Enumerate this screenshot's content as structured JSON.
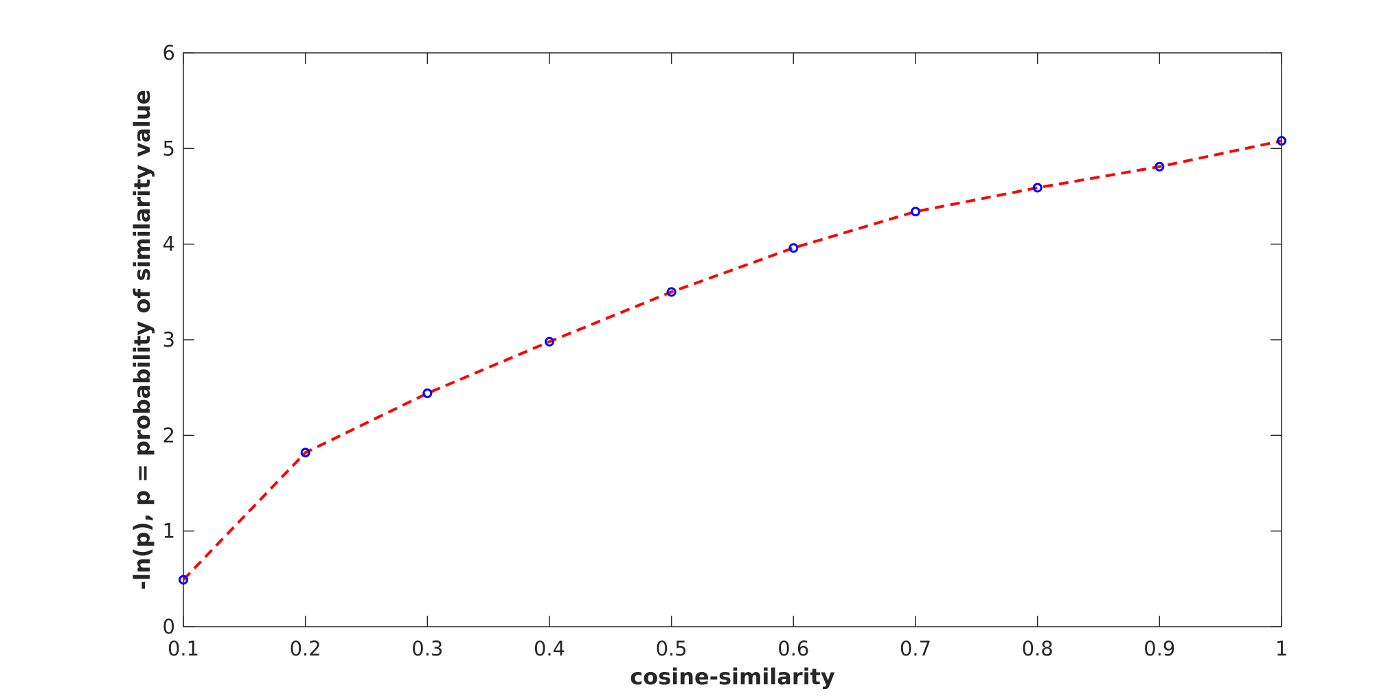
{
  "chart_data": {
    "type": "line",
    "title": "",
    "xlabel": "cosine-similarity",
    "ylabel": "-ln(p), p = probability of similarity value",
    "xlim": [
      0.1,
      1
    ],
    "ylim": [
      0,
      6
    ],
    "x_ticks": [
      0.1,
      0.2,
      0.3,
      0.4,
      0.5,
      0.6,
      0.7,
      0.8,
      0.9,
      1
    ],
    "x_tick_labels": [
      "0.1",
      "0.2",
      "0.3",
      "0.4",
      "0.5",
      "0.6",
      "0.7",
      "0.8",
      "0.9",
      "1"
    ],
    "y_ticks": [
      0,
      1,
      2,
      3,
      4,
      5,
      6
    ],
    "y_tick_labels": [
      "0",
      "1",
      "2",
      "3",
      "4",
      "5",
      "6"
    ],
    "grid": false,
    "legend": "none",
    "series": [
      {
        "x": [
          0.1,
          0.2,
          0.3,
          0.4,
          0.5,
          0.6,
          0.7,
          0.8,
          0.9,
          1.0
        ],
        "y": [
          0.49,
          1.82,
          2.44,
          2.98,
          3.5,
          3.96,
          4.34,
          4.59,
          4.81,
          5.08
        ],
        "line_color": "#ff0000",
        "line_style": "dashed",
        "marker": "circle",
        "marker_color": "#0000ff"
      }
    ]
  }
}
